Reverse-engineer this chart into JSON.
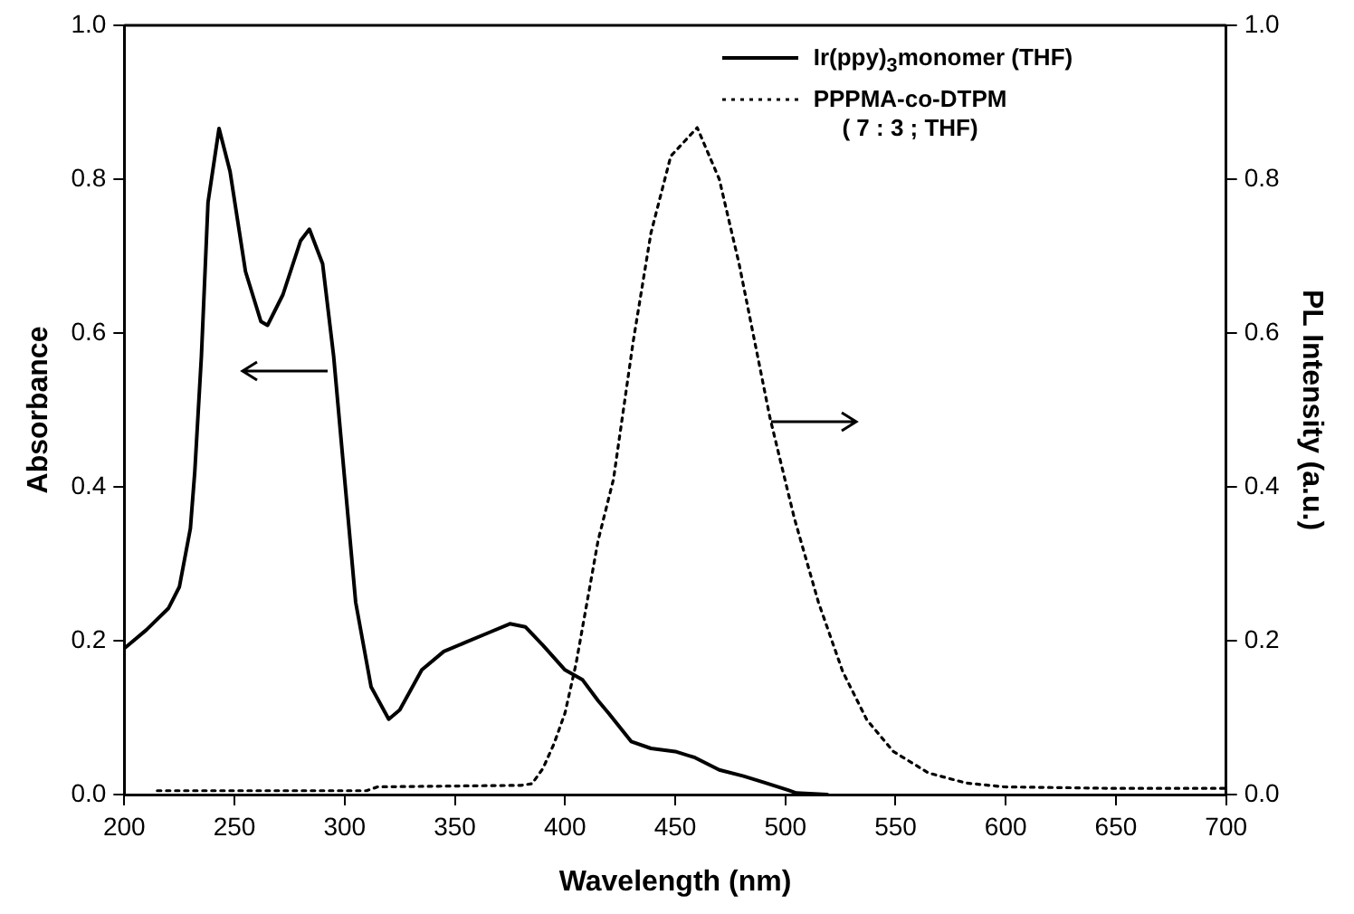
{
  "chart_data": {
    "type": "line",
    "xlabel": "Wavelength (nm)",
    "ylabel": "Absorbance",
    "y2label": "PL Intensity (a.u.)",
    "xlim": [
      200,
      700
    ],
    "xticks": [
      200,
      250,
      300,
      350,
      400,
      450,
      500,
      550,
      600,
      650,
      700
    ],
    "ylim": [
      0,
      1
    ],
    "yticks": [
      {
        "value": 0,
        "label": "0.0"
      },
      {
        "value": 0.2,
        "label": "0.2"
      },
      {
        "value": 0.4,
        "label": "0.4"
      },
      {
        "value": 0.6,
        "label": "0.6"
      },
      {
        "value": 0.8,
        "label": "0.8"
      },
      {
        "value": 1,
        "label": "1.0"
      }
    ],
    "y2lim": [
      0,
      1
    ],
    "y2ticks": [
      {
        "value": 0,
        "label": "0.0"
      },
      {
        "value": 0.2,
        "label": "0.2"
      },
      {
        "value": 0.4,
        "label": "0.4"
      },
      {
        "value": 0.6,
        "label": "0.6"
      },
      {
        "value": 0.8,
        "label": "0.8"
      },
      {
        "value": 1,
        "label": "1.0"
      }
    ],
    "grid": false,
    "legend": "top right",
    "marker": "none",
    "series": [
      {
        "name": "Ir(ppy)$_{3}$monomer (THF)",
        "color": "#000000",
        "line_style": "solid",
        "x": [
          200,
          210,
          220,
          225,
          230,
          232,
          235,
          238,
          243,
          248,
          255,
          262,
          265,
          272,
          280,
          284,
          290,
          295,
          300,
          305,
          312,
          320,
          325,
          335,
          345,
          355,
          365,
          375,
          382,
          390,
          400,
          408,
          415,
          420,
          430,
          439,
          450,
          459,
          470,
          481,
          490,
          501,
          505,
          519
        ],
        "values": [
          0.19,
          0.214,
          0.242,
          0.27,
          0.346,
          0.42,
          0.57,
          0.77,
          0.866,
          0.81,
          0.68,
          0.615,
          0.61,
          0.65,
          0.72,
          0.735,
          0.69,
          0.57,
          0.41,
          0.25,
          0.14,
          0.098,
          0.11,
          0.162,
          0.186,
          0.198,
          0.21,
          0.222,
          0.218,
          0.194,
          0.162,
          0.149,
          0.122,
          0.105,
          0.069,
          0.06,
          0.056,
          0.048,
          0.032,
          0.024,
          0.016,
          0.006,
          0.002,
          0
        ]
      },
      {
        "name": "PPPMA-co-DTPM\n( 7 : 3  ; THF)",
        "color": "#000000",
        "line_style": "dotted",
        "axis": "y2",
        "x": [
          215,
          310,
          315,
          380,
          385,
          390,
          395,
          400,
          405,
          410,
          415,
          422,
          431,
          439,
          448,
          460,
          470,
          479,
          486,
          493,
          504,
          515,
          526,
          537,
          549,
          565,
          582,
          599,
          650,
          700
        ],
        "values": [
          0.005,
          0.005,
          0.01,
          0.012,
          0.014,
          0.034,
          0.066,
          0.106,
          0.17,
          0.25,
          0.33,
          0.41,
          0.59,
          0.73,
          0.83,
          0.867,
          0.8,
          0.69,
          0.59,
          0.49,
          0.36,
          0.25,
          0.16,
          0.097,
          0.056,
          0.028,
          0.015,
          0.01,
          0.008,
          0.008
        ]
      }
    ]
  }
}
